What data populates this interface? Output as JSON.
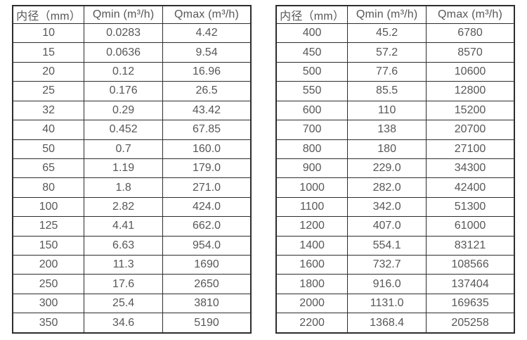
{
  "colors": {
    "background": "#ffffff",
    "table_border": "#2d2d2d",
    "text": "#575757"
  },
  "chart_data": [
    {
      "type": "table",
      "columns": [
        "内径（mm）",
        "Qmin (m³/h)",
        "Qmax (m³/h)"
      ],
      "rows": [
        [
          "10",
          "0.0283",
          "4.42"
        ],
        [
          "15",
          "0.0636",
          "9.54"
        ],
        [
          "20",
          "0.12",
          "16.96"
        ],
        [
          "25",
          "0.176",
          "26.5"
        ],
        [
          "32",
          "0.29",
          "43.42"
        ],
        [
          "40",
          "0.452",
          "67.85"
        ],
        [
          "50",
          "0.7",
          "160.0"
        ],
        [
          "65",
          "1.19",
          "179.0"
        ],
        [
          "80",
          "1.8",
          "271.0"
        ],
        [
          "100",
          "2.82",
          "424.0"
        ],
        [
          "125",
          "4.41",
          "662.0"
        ],
        [
          "150",
          "6.63",
          "954.0"
        ],
        [
          "200",
          "11.3",
          "1690"
        ],
        [
          "250",
          "17.6",
          "2650"
        ],
        [
          "300",
          "25.4",
          "3810"
        ],
        [
          "350",
          "34.6",
          "5190"
        ]
      ]
    },
    {
      "type": "table",
      "columns": [
        "内径（mm）",
        "Qmin (m³/h)",
        "Qmax (m³/h)"
      ],
      "rows": [
        [
          "400",
          "45.2",
          "6780"
        ],
        [
          "450",
          "57.2",
          "8570"
        ],
        [
          "500",
          "77.6",
          "10600"
        ],
        [
          "550",
          "85.5",
          "12800"
        ],
        [
          "600",
          "110",
          "15200"
        ],
        [
          "700",
          "138",
          "20700"
        ],
        [
          "800",
          "180",
          "27100"
        ],
        [
          "900",
          "229.0",
          "34300"
        ],
        [
          "1000",
          "282.0",
          "42400"
        ],
        [
          "1100",
          "342.0",
          "51300"
        ],
        [
          "1200",
          "407.0",
          "61000"
        ],
        [
          "1400",
          "554.1",
          "83121"
        ],
        [
          "1600",
          "732.7",
          "108566"
        ],
        [
          "1800",
          "916.0",
          "137404"
        ],
        [
          "2000",
          "1131.0",
          "169635"
        ],
        [
          "2200",
          "1368.4",
          "205258"
        ]
      ]
    }
  ]
}
